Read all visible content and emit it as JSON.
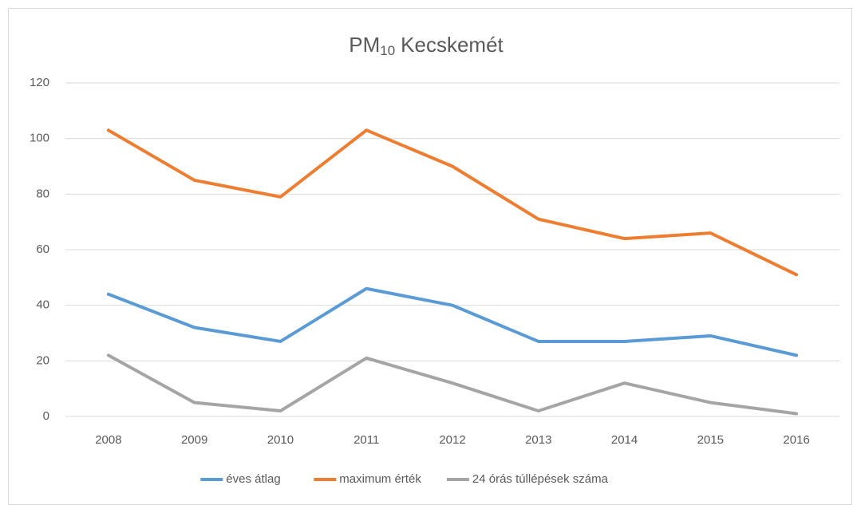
{
  "chart_data": {
    "type": "line",
    "title": [
      "PM",
      "10",
      "Kecskemét"
    ],
    "categories": [
      "2008",
      "2009",
      "2010",
      "2011",
      "2012",
      "2013",
      "2014",
      "2015",
      "2016"
    ],
    "series": [
      {
        "name": "éves átlag",
        "color": "#5b9bd5",
        "values": [
          44,
          32,
          27,
          46,
          40,
          27,
          27,
          29,
          22
        ]
      },
      {
        "name": "maximum érték",
        "color": "#ed7d31",
        "values": [
          103,
          85,
          79,
          103,
          90,
          71,
          64,
          66,
          51
        ]
      },
      {
        "name": "24 órás túllépések száma",
        "color": "#a5a5a5",
        "values": [
          22,
          5,
          2,
          21,
          12,
          2,
          12,
          5,
          1
        ]
      }
    ],
    "ylim": [
      0,
      120
    ],
    "yticks": [
      0,
      20,
      40,
      60,
      80,
      100,
      120
    ],
    "grid": true,
    "legend": "bottom"
  }
}
